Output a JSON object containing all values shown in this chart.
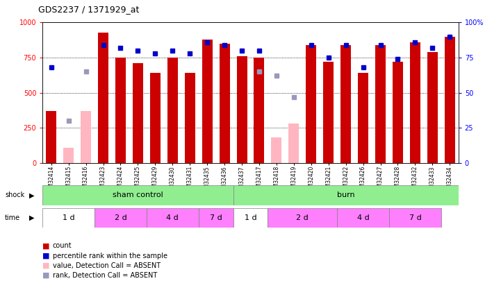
{
  "title": "GDS2237 / 1371929_at",
  "samples": [
    "GSM32414",
    "GSM32415",
    "GSM32416",
    "GSM32423",
    "GSM32424",
    "GSM32425",
    "GSM32429",
    "GSM32430",
    "GSM32431",
    "GSM32435",
    "GSM32436",
    "GSM32437",
    "GSM32417",
    "GSM32418",
    "GSM32419",
    "GSM32420",
    "GSM32421",
    "GSM32422",
    "GSM32426",
    "GSM32427",
    "GSM32428",
    "GSM32432",
    "GSM32433",
    "GSM32434"
  ],
  "count_values": [
    370,
    null,
    null,
    930,
    750,
    710,
    640,
    750,
    640,
    880,
    850,
    760,
    750,
    null,
    null,
    840,
    720,
    840,
    640,
    840,
    720,
    860,
    790,
    900
  ],
  "rank_values": [
    68,
    null,
    null,
    84,
    82,
    80,
    78,
    80,
    78,
    86,
    84,
    80,
    80,
    null,
    null,
    84,
    75,
    84,
    68,
    84,
    74,
    86,
    82,
    90
  ],
  "absent_count": [
    null,
    110,
    370,
    null,
    null,
    null,
    null,
    null,
    null,
    null,
    null,
    null,
    null,
    180,
    280,
    null,
    null,
    null,
    null,
    null,
    null,
    null,
    null,
    null
  ],
  "absent_rank": [
    null,
    30,
    65,
    null,
    null,
    null,
    null,
    null,
    null,
    null,
    null,
    null,
    65,
    62,
    47,
    null,
    null,
    null,
    null,
    null,
    null,
    null,
    null,
    null
  ],
  "bar_color": "#CC0000",
  "rank_color": "#0000CC",
  "absent_bar_color": "#FFB6C1",
  "absent_rank_color": "#9999BB",
  "ylim": [
    0,
    1000
  ],
  "yticks": [
    0,
    250,
    500,
    750,
    1000
  ],
  "y2lim": [
    0,
    100
  ],
  "y2ticks": [
    0,
    25,
    50,
    75,
    100
  ],
  "bar_width": 0.6,
  "shock_green": "#90EE90",
  "time_white": "#ffffff",
  "time_pink": "#FF80FF",
  "time_segments": [
    [
      0,
      3,
      "1 d",
      "white"
    ],
    [
      3,
      6,
      "2 d",
      "#FF80FF"
    ],
    [
      6,
      9,
      "4 d",
      "#FF80FF"
    ],
    [
      9,
      11,
      "7 d",
      "#FF80FF"
    ],
    [
      11,
      13,
      "1 d",
      "white"
    ],
    [
      13,
      17,
      "2 d",
      "#FF80FF"
    ],
    [
      17,
      20,
      "4 d",
      "#FF80FF"
    ],
    [
      20,
      23,
      "7 d",
      "#FF80FF"
    ]
  ]
}
